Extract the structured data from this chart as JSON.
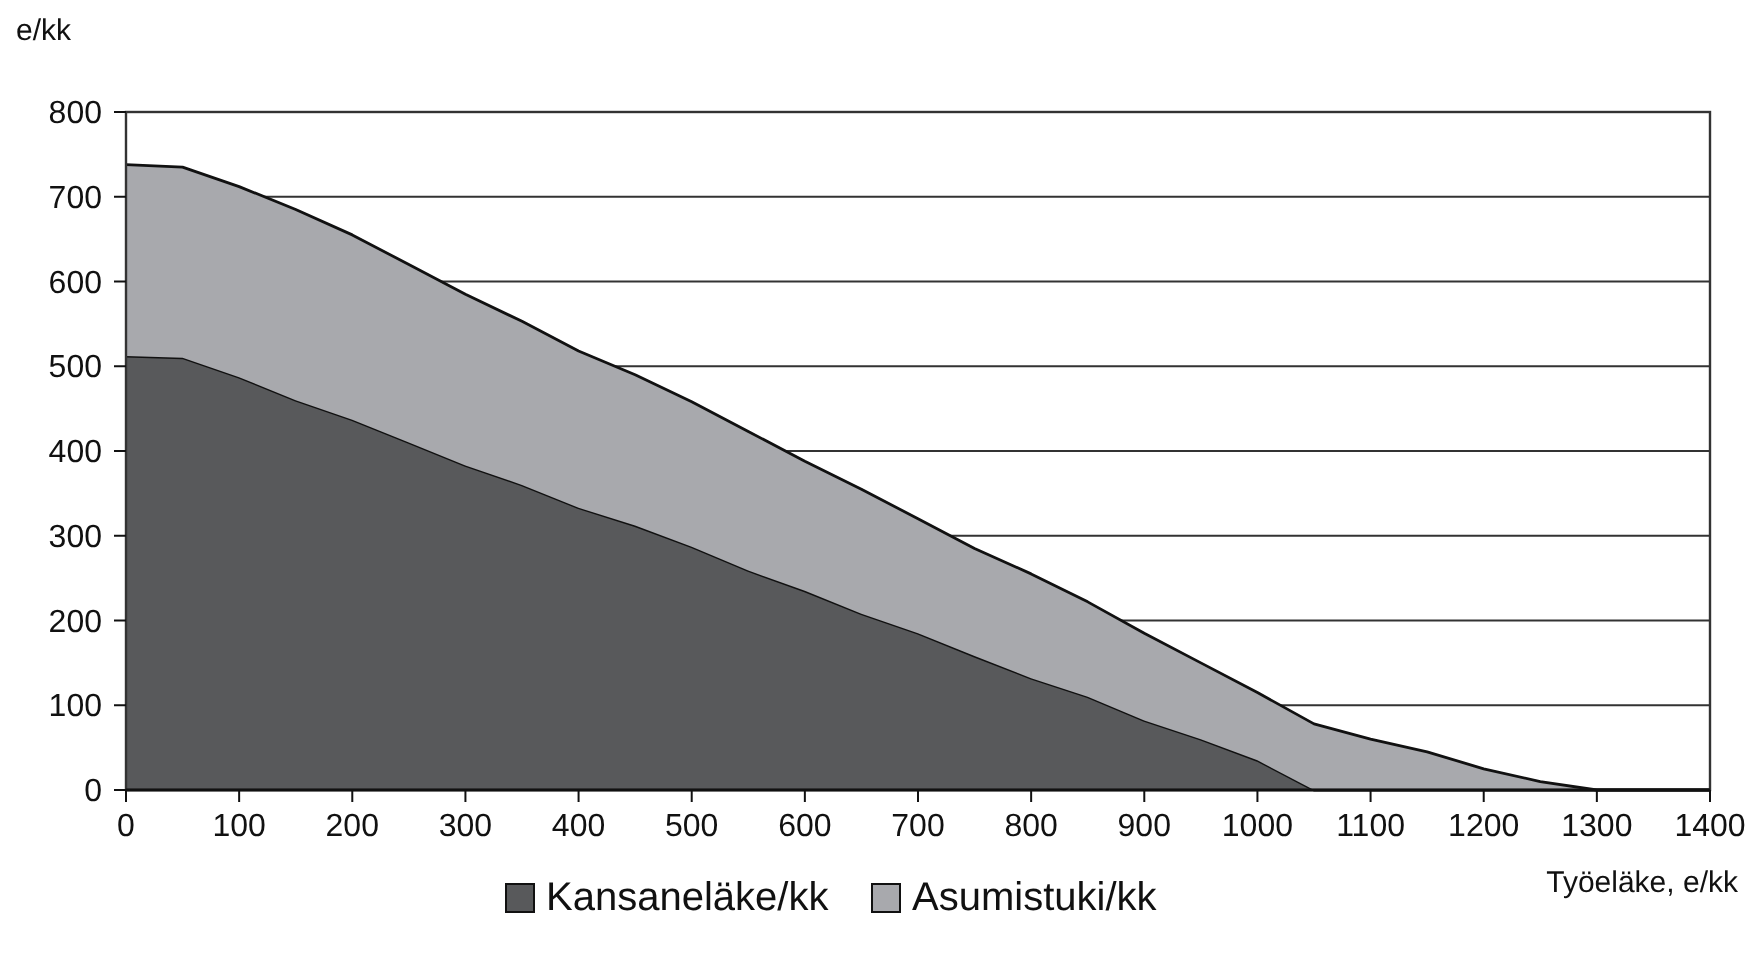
{
  "chart_data": {
    "type": "area",
    "stacked": true,
    "xlabel": "Työeläke, e/kk",
    "ylabel": "e/kk",
    "x": [
      0,
      50,
      100,
      150,
      200,
      250,
      300,
      350,
      400,
      450,
      500,
      550,
      600,
      650,
      700,
      750,
      800,
      850,
      900,
      950,
      1000,
      1050,
      1100,
      1150,
      1200,
      1250,
      1300,
      1350,
      1400
    ],
    "series": [
      {
        "name": "Kansaneläke/kk",
        "color": "#58595b",
        "values": [
          512,
          510,
          487,
          460,
          437,
          410,
          383,
          360,
          333,
          312,
          287,
          259,
          235,
          208,
          185,
          158,
          132,
          110,
          82,
          60,
          35,
          0,
          0,
          0,
          0,
          0,
          0,
          0,
          0
        ]
      },
      {
        "name": "Asumistuki/kk",
        "color": "#a8a9ad",
        "values": [
          226,
          225,
          225,
          225,
          218,
          210,
          202,
          193,
          185,
          178,
          171,
          164,
          153,
          147,
          135,
          127,
          123,
          112,
          103,
          90,
          80,
          78,
          60,
          45,
          25,
          10,
          0,
          0,
          0
        ]
      }
    ],
    "xlim": [
      0,
      1400
    ],
    "xticks": [
      0,
      100,
      200,
      300,
      400,
      500,
      600,
      700,
      800,
      900,
      1000,
      1100,
      1200,
      1300,
      1400
    ],
    "ylim": [
      0,
      800
    ],
    "yticks": [
      0,
      100,
      200,
      300,
      400,
      500,
      600,
      700,
      800
    ],
    "grid": "y",
    "legend": "bottom"
  }
}
